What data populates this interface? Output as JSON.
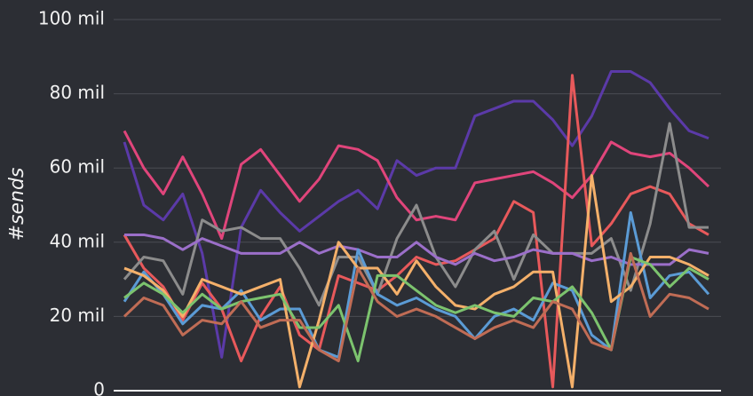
{
  "chart_data": {
    "type": "line",
    "y_label": "#sends",
    "ylim": [
      0,
      100
    ],
    "yticks": [
      {
        "value": 0,
        "label": "0"
      },
      {
        "value": 20,
        "label": "20 mil"
      },
      {
        "value": 40,
        "label": "40 mil"
      },
      {
        "value": 60,
        "label": "60 mil"
      },
      {
        "value": 80,
        "label": "80 mil"
      },
      {
        "value": 100,
        "label": "100 mil"
      }
    ],
    "grid": true,
    "categories": [
      null,
      null,
      null,
      null,
      null,
      null,
      null,
      null,
      null,
      null,
      null,
      null,
      null,
      null,
      null,
      null,
      null,
      null,
      null,
      null,
      null,
      null,
      null,
      null,
      null,
      null,
      null,
      null,
      null,
      null,
      null
    ],
    "series": [
      {
        "color": "#5b3aa8",
        "values": [
          67,
          50,
          46,
          53,
          37,
          9,
          44,
          54,
          48,
          43,
          47,
          51,
          54,
          49,
          62,
          58,
          60,
          60,
          74,
          76,
          78,
          78,
          73,
          66,
          74,
          86,
          86,
          83,
          76,
          70,
          68
        ]
      },
      {
        "color": "#e0457b",
        "values": [
          70,
          60,
          53,
          63,
          53,
          41,
          61,
          65,
          58,
          51,
          57,
          66,
          65,
          62,
          52,
          46,
          47,
          46,
          56,
          57,
          58,
          59,
          56,
          52,
          58,
          67,
          64,
          63,
          64,
          60,
          55
        ]
      },
      {
        "color": "#e8595b",
        "values": [
          42,
          33,
          28,
          19,
          29,
          22,
          8,
          20,
          28,
          15,
          11,
          31,
          29,
          27,
          31,
          36,
          34,
          35,
          38,
          41,
          51,
          48,
          1,
          85,
          39,
          45,
          53,
          55,
          53,
          45,
          42
        ]
      },
      {
        "color": "#8c8c8c",
        "values": [
          30,
          36,
          35,
          26,
          46,
          43,
          44,
          41,
          41,
          33,
          23,
          36,
          36,
          26,
          41,
          50,
          36,
          28,
          38,
          43,
          30,
          42,
          37,
          37,
          37,
          41,
          27,
          45,
          72,
          44,
          44
        ]
      },
      {
        "color": "#9b6fc9",
        "values": [
          42,
          42,
          41,
          38,
          41,
          39,
          37,
          37,
          37,
          40,
          37,
          39,
          38,
          36,
          36,
          40,
          36,
          34,
          37,
          35,
          36,
          38,
          37,
          37,
          35,
          36,
          34,
          34,
          34,
          38,
          37
        ]
      },
      {
        "color": "#5b9bd5",
        "values": [
          24,
          32,
          26,
          18,
          23,
          22,
          27,
          19,
          22,
          22,
          11,
          9,
          38,
          26,
          23,
          25,
          22,
          20,
          14,
          20,
          22,
          19,
          29,
          27,
          15,
          11,
          48,
          25,
          31,
          32,
          26
        ]
      },
      {
        "color": "#f4b06a",
        "values": [
          33,
          31,
          27,
          20,
          30,
          28,
          26,
          28,
          30,
          1,
          19,
          40,
          33,
          33,
          26,
          35,
          28,
          23,
          22,
          26,
          28,
          32,
          32,
          1,
          58,
          24,
          28,
          36,
          36,
          34,
          31
        ]
      },
      {
        "color": "#7cc36e",
        "values": [
          25,
          29,
          26,
          21,
          26,
          22,
          24,
          25,
          26,
          17,
          17,
          23,
          8,
          31,
          31,
          27,
          23,
          21,
          23,
          21,
          20,
          25,
          24,
          28,
          21,
          11,
          36,
          34,
          28,
          33,
          30
        ]
      },
      {
        "color": "#c06c55",
        "values": [
          20,
          25,
          23,
          15,
          19,
          18,
          24,
          17,
          19,
          19,
          11,
          8,
          33,
          24,
          20,
          22,
          20,
          17,
          14,
          17,
          19,
          17,
          24,
          22,
          13,
          11,
          37,
          20,
          26,
          25,
          22
        ]
      }
    ]
  }
}
